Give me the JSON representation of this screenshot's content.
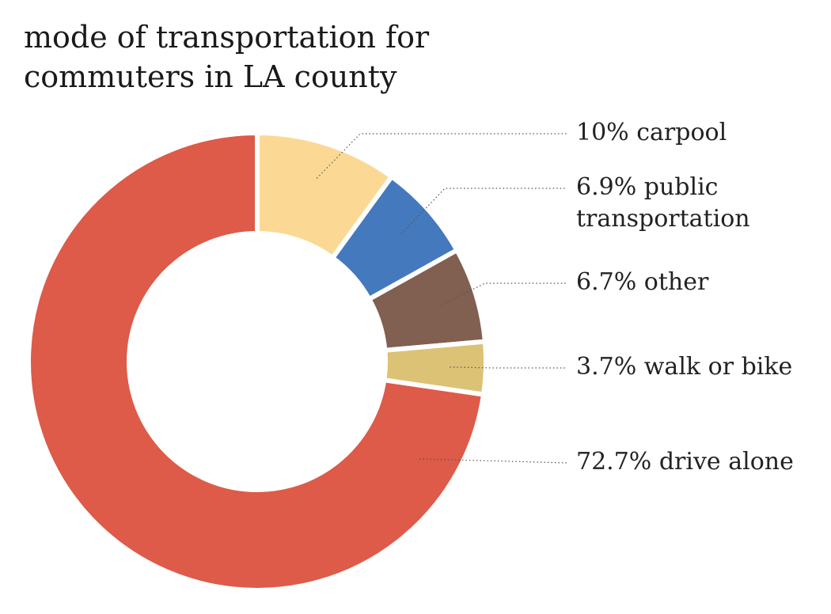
{
  "chart_data": {
    "type": "pie",
    "variant": "donut",
    "title_lines": [
      "mode of transportation for",
      "commuters in LA county"
    ],
    "legend": "callout-labels-right",
    "slices": [
      {
        "label": "10% carpool",
        "value": 10,
        "color": "#fbd995"
      },
      {
        "label": "6.9% public transportation",
        "lines": [
          "6.9% public",
          "transportation"
        ],
        "value": 6.9,
        "color": "#4479be"
      },
      {
        "label": "6.7% other",
        "value": 6.7,
        "color": "#815f51"
      },
      {
        "label": "3.7% walk or bike",
        "value": 3.7,
        "color": "#dcc274"
      },
      {
        "label": "72.7% drive alone",
        "value": 72.7,
        "color": "#dd5b48"
      }
    ]
  }
}
